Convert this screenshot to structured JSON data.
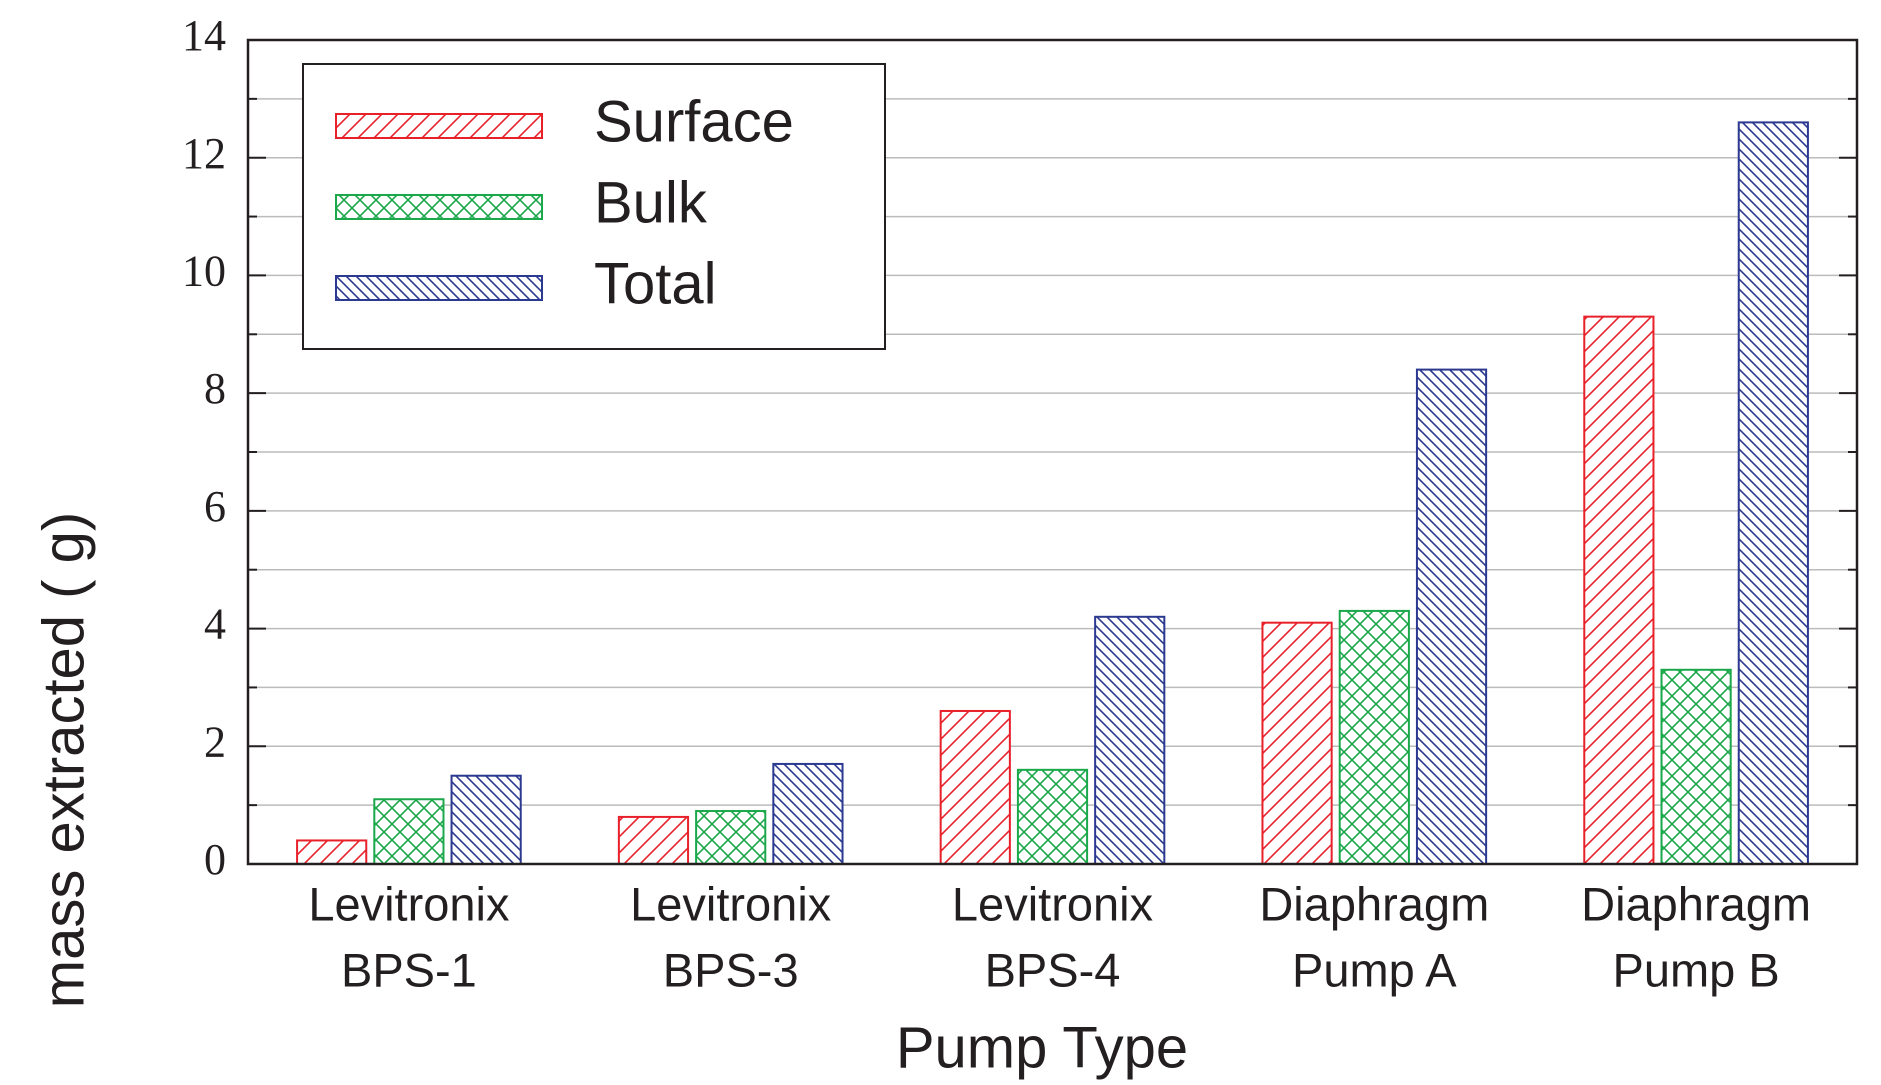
{
  "chart_data": {
    "type": "bar",
    "y_label": "mass extracted (  g)",
    "x_label": "Pump Type",
    "categories": [
      [
        "Levitronix",
        "BPS-1"
      ],
      [
        "Levitronix",
        "BPS-3"
      ],
      [
        "Levitronix",
        "BPS-4"
      ],
      [
        "Diaphragm",
        "Pump A"
      ],
      [
        "Diaphragm",
        "Pump B"
      ]
    ],
    "series": [
      {
        "name": "Surface",
        "color": "#e8202a",
        "hatch": "/",
        "values": [
          0.4,
          0.8,
          2.6,
          4.1,
          9.3
        ]
      },
      {
        "name": "Bulk",
        "color": "#1aa84a",
        "hatch": "x",
        "values": [
          1.1,
          0.9,
          1.6,
          4.3,
          3.3
        ]
      },
      {
        "name": "Total",
        "color": "#2b3990",
        "hatch": "\\",
        "values": [
          1.5,
          1.7,
          4.2,
          8.4,
          12.6
        ]
      }
    ],
    "ylim": [
      0,
      14
    ],
    "yticks": [
      0,
      2,
      4,
      6,
      8,
      10,
      12,
      14
    ],
    "yminorticks": [
      1,
      3,
      5,
      7,
      9,
      11,
      13
    ],
    "grid": true,
    "legend": "upper left"
  }
}
